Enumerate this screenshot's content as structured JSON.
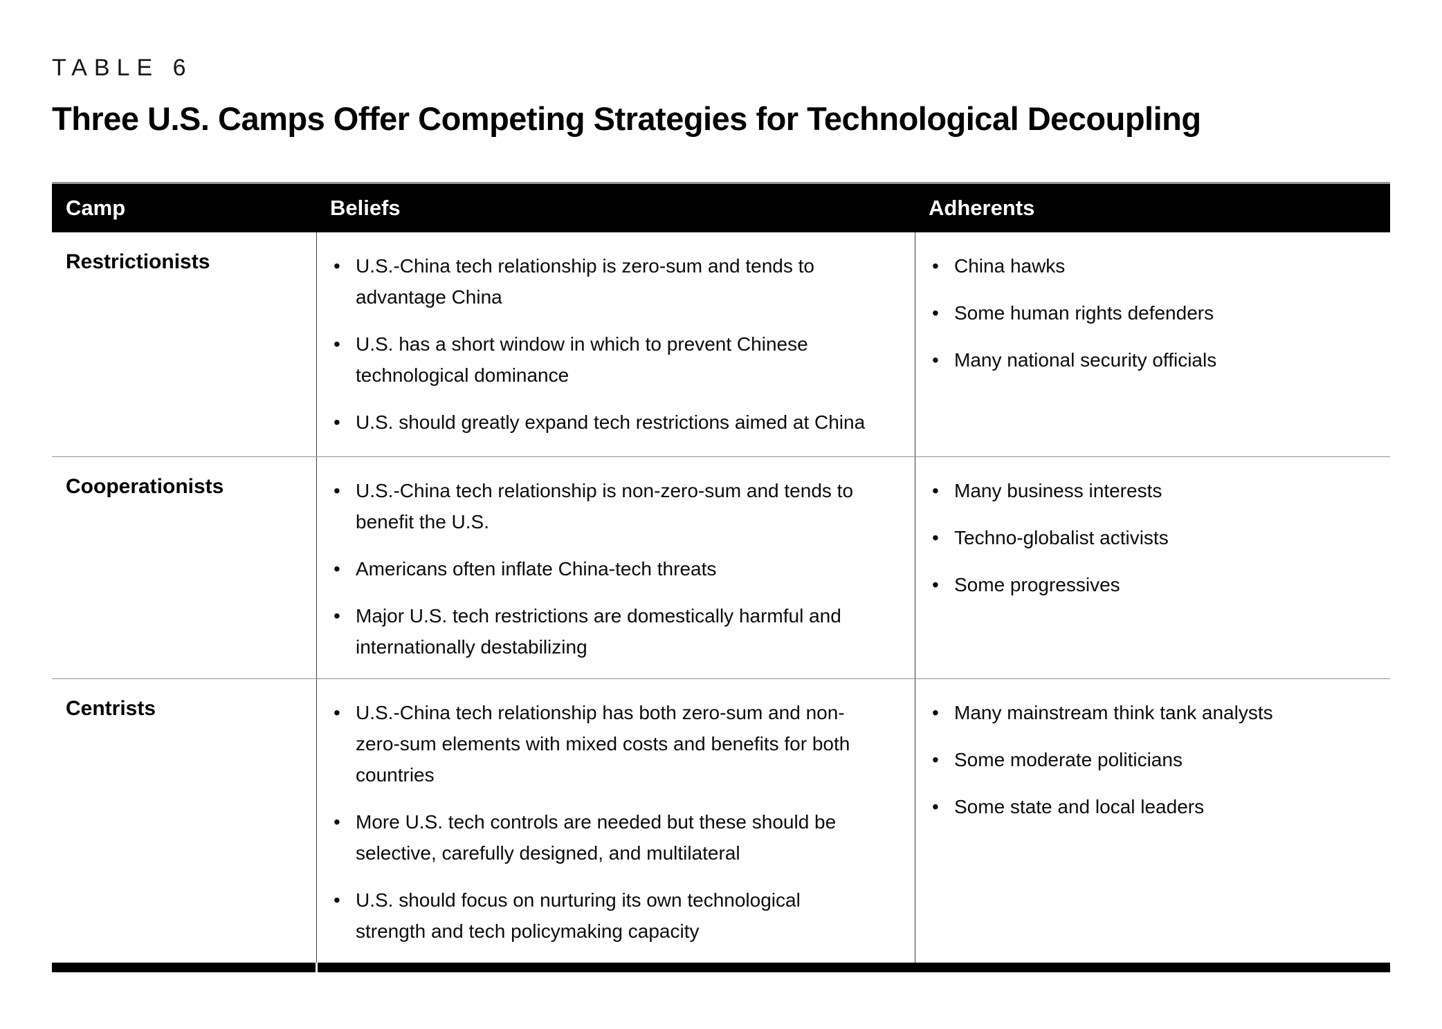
{
  "label": "TABLE 6",
  "title": "Three U.S. Camps Offer Competing Strategies for Technological Decoupling",
  "bullet_glyph": "•",
  "columns": [
    "Camp",
    "Beliefs",
    "Adherents"
  ],
  "rows": [
    {
      "camp": "Restrictionists",
      "beliefs": [
        "U.S.-China tech relationship is zero-sum and tends to advantage China",
        "U.S. has a short window in which to prevent Chinese technological dominance",
        "U.S. should greatly expand tech restrictions aimed at China"
      ],
      "adherents": [
        "China hawks",
        "Some human rights defenders",
        "Many national security officials"
      ]
    },
    {
      "camp": "Cooperationists",
      "beliefs": [
        "U.S.-China tech relationship is non-zero-sum and tends to benefit the U.S.",
        "Americans often inflate China-tech threats",
        "Major U.S. tech restrictions are domestically harmful and internationally destabilizing"
      ],
      "adherents": [
        "Many business interests",
        "Techno-globalist activists",
        "Some progressives"
      ]
    },
    {
      "camp": "Centrists",
      "beliefs": [
        "U.S.-China tech relationship has both zero-sum and non-zero-sum elements with mixed costs and benefits for both countries",
        "More U.S. tech controls are needed but these should be selective, carefully designed, and multilateral",
        "U.S. should focus on nurturing its own technological strength and tech policymaking capacity"
      ],
      "adherents": [
        "Many mainstream think tank analysts",
        "Some moderate politicians",
        "Some state and local leaders"
      ]
    }
  ],
  "colors": {
    "header_bg": "#000000",
    "header_text": "#ffffff",
    "body_text": "#0b0b0b",
    "row_divider": "#8f8f8f",
    "column_divider": "#3f3f3f",
    "bottom_bar": "#000000",
    "table_top_line": "#9a9a9a"
  }
}
